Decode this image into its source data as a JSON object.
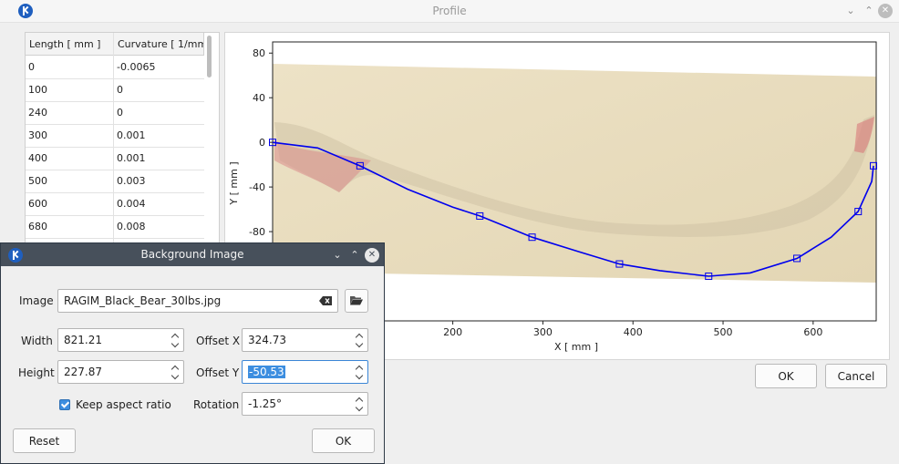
{
  "main": {
    "title": "Profile",
    "ok_label": "OK",
    "cancel_label": "Cancel"
  },
  "table": {
    "headers": [
      "Length [ mm ]",
      "Curvature [ 1/mm"
    ],
    "rows": [
      [
        "0",
        "-0.0065"
      ],
      [
        "100",
        "0"
      ],
      [
        "240",
        "0"
      ],
      [
        "300",
        "0.001"
      ],
      [
        "400",
        "0.001"
      ],
      [
        "500",
        "0.003"
      ],
      [
        "600",
        "0.004"
      ],
      [
        "680",
        "0.008"
      ]
    ]
  },
  "chart_data": {
    "type": "line",
    "xlabel": "X [ mm ]",
    "ylabel": "Y [ mm ]",
    "xlim": [
      0,
      670
    ],
    "ylim": [
      -160,
      90
    ],
    "x_ticks": [
      200,
      300,
      400,
      500,
      600
    ],
    "y_ticks": [
      80,
      40,
      0,
      -40,
      -80,
      -120
    ],
    "grid": false,
    "series": [
      {
        "color": "#0000ee",
        "points": [
          [
            0,
            0
          ],
          [
            50,
            -5
          ],
          [
            97,
            -21
          ],
          [
            150,
            -42
          ],
          [
            200,
            -58
          ],
          [
            230,
            -66
          ],
          [
            288,
            -85
          ],
          [
            340,
            -98
          ],
          [
            385,
            -109
          ],
          [
            430,
            -115
          ],
          [
            484,
            -120
          ],
          [
            530,
            -117
          ],
          [
            582,
            -104
          ],
          [
            620,
            -85
          ],
          [
            650,
            -62
          ],
          [
            665,
            -35
          ],
          [
            667,
            -21
          ]
        ],
        "markers": [
          [
            0,
            0
          ],
          [
            97,
            -21
          ],
          [
            230,
            -66
          ],
          [
            288,
            -85
          ],
          [
            385,
            -109
          ],
          [
            484,
            -120
          ],
          [
            582,
            -104
          ],
          [
            650,
            -62
          ],
          [
            667,
            -21
          ]
        ]
      }
    ]
  },
  "dialog": {
    "title": "Background Image",
    "image_label": "Image",
    "image_value": "RAGIM_Black_Bear_30lbs.jpg",
    "width_label": "Width",
    "width_value": "821.21",
    "height_label": "Height",
    "height_value": "227.87",
    "offset_x_label": "Offset X",
    "offset_x_value": "324.73",
    "offset_y_label": "Offset Y",
    "offset_y_value": "-50.53",
    "keep_aspect_label": "Keep aspect ratio",
    "keep_aspect_checked": true,
    "rotation_label": "Rotation",
    "rotation_value": "-1.25°",
    "reset_label": "Reset",
    "ok_label": "OK"
  }
}
